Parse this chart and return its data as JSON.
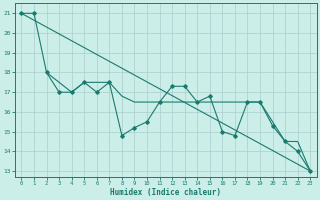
{
  "xlabel": "Humidex (Indice chaleur)",
  "xlim": [
    -0.5,
    23.5
  ],
  "ylim": [
    12.7,
    21.5
  ],
  "yticks": [
    13,
    14,
    15,
    16,
    17,
    18,
    19,
    20,
    21
  ],
  "xticks": [
    0,
    1,
    2,
    3,
    4,
    5,
    6,
    7,
    8,
    9,
    10,
    11,
    12,
    13,
    14,
    15,
    16,
    17,
    18,
    19,
    20,
    21,
    22,
    23
  ],
  "bg_color": "#cceee8",
  "grid_color": "#aacccc",
  "line_color": "#1a7a6e",
  "straight_line": {
    "x": [
      0,
      23
    ],
    "y": [
      21,
      13
    ]
  },
  "series_smooth": {
    "x": [
      2,
      3,
      4,
      5,
      6,
      7,
      8,
      9,
      10,
      11,
      12,
      13,
      14,
      15,
      16,
      17,
      18,
      19,
      20,
      21,
      22,
      23
    ],
    "y": [
      18.0,
      17.5,
      17.0,
      17.5,
      17.5,
      17.5,
      16.8,
      16.5,
      16.5,
      16.5,
      16.5,
      16.5,
      16.5,
      16.5,
      16.5,
      16.5,
      16.5,
      16.5,
      15.5,
      14.5,
      14.5,
      13.0
    ]
  },
  "series_zigzag": {
    "x": [
      0,
      1,
      2,
      3,
      4,
      5,
      6,
      7,
      8,
      9,
      10,
      11,
      12,
      13,
      14,
      15,
      16,
      17,
      18,
      19,
      20,
      21,
      22,
      23
    ],
    "y": [
      21,
      21,
      18,
      17,
      17,
      17.5,
      17.0,
      17.5,
      14.8,
      15.2,
      15.5,
      16.5,
      17.3,
      17.3,
      16.5,
      16.8,
      15.0,
      14.8,
      16.5,
      16.5,
      15.3,
      14.5,
      14.0,
      13.0
    ]
  }
}
